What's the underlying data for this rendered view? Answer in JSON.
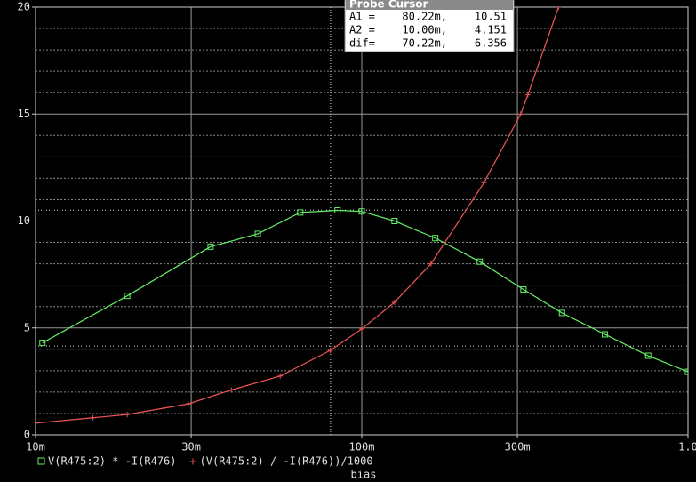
{
  "chart_data": {
    "type": "line",
    "xlabel": "bias",
    "xscale": "log",
    "grid": true,
    "background": "#000000",
    "xlim": [
      0.01,
      1
    ],
    "ylim": [
      0,
      20
    ],
    "xticks": [
      {
        "value": 0.01,
        "label": "10m"
      },
      {
        "value": 0.03,
        "label": "30m"
      },
      {
        "value": 0.1,
        "label": "100m"
      },
      {
        "value": 0.3,
        "label": "300m"
      },
      {
        "value": 1,
        "label": "1.0"
      }
    ],
    "yticks": [
      0,
      5,
      10,
      15,
      20
    ],
    "series": [
      {
        "name": "V(R475:2) * -I(R476)",
        "color": "#66ee66",
        "marker": "square",
        "x": [
          0.0105,
          0.0191,
          0.0344,
          0.048,
          0.0648,
          0.0843,
          0.1,
          0.126,
          0.168,
          0.23,
          0.313,
          0.411,
          0.556,
          0.755,
          1.0
        ],
        "values": [
          4.3,
          6.5,
          8.8,
          9.4,
          10.4,
          10.5,
          10.45,
          10.0,
          9.2,
          8.1,
          6.8,
          5.7,
          4.7,
          3.7,
          2.95
        ]
      },
      {
        "name": "(V(R475:2) / -I(R476))/1000",
        "color": "#ee5555",
        "marker": "plus",
        "x": [
          0.01,
          0.015,
          0.0191,
          0.0294,
          0.0398,
          0.0562,
          0.0801,
          0.1,
          0.126,
          0.163,
          0.237,
          0.307,
          0.323,
          0.401
        ],
        "values": [
          0.55,
          0.8,
          0.95,
          1.45,
          2.1,
          2.75,
          3.95,
          4.95,
          6.2,
          8.0,
          11.8,
          15.0,
          15.9,
          20.0
        ]
      }
    ],
    "cursor": {
      "title": "Probe Cursor",
      "rows": [
        {
          "label": "A1 =",
          "x": {
            "value": 0.08022,
            "label": "80.22m,"
          },
          "y": 10.51
        },
        {
          "label": "A2 =",
          "x": {
            "value": 0.01,
            "label": "10.00m,"
          },
          "y": 4.151
        },
        {
          "label": "dif=",
          "x": {
            "value": 0.07022,
            "label": "70.22m,"
          },
          "y": 6.356
        }
      ]
    }
  }
}
